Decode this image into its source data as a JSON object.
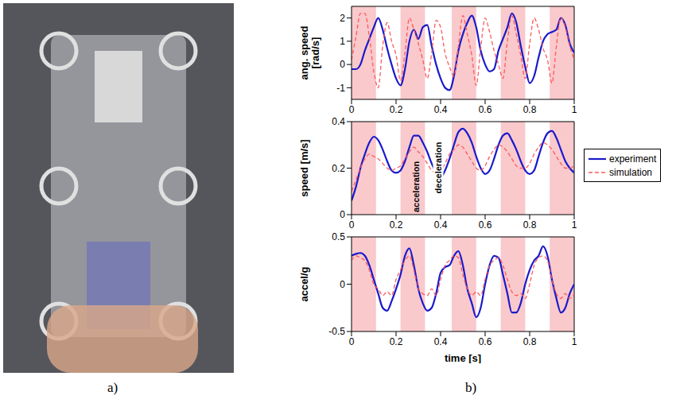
{
  "photo_label": "a)",
  "chart_label": "b)",
  "chart_data": [
    {
      "type": "line",
      "ylabel": "ang. speed [rad/s]",
      "xlim": [
        0,
        1
      ],
      "xticks": [
        0,
        0.2,
        0.4,
        0.6,
        0.8,
        1
      ],
      "ylim": [
        -1.5,
        2.5
      ],
      "yticks": [
        -1,
        0,
        1,
        2
      ],
      "grid": false,
      "spans": [
        [
          0,
          0.11
        ],
        [
          0.22,
          0.33
        ],
        [
          0.45,
          0.56
        ],
        [
          0.67,
          0.78
        ],
        [
          0.89,
          1
        ]
      ],
      "x": [
        0,
        0.02,
        0.04,
        0.06,
        0.08,
        0.1,
        0.12,
        0.14,
        0.16,
        0.18,
        0.2,
        0.22,
        0.24,
        0.26,
        0.28,
        0.3,
        0.32,
        0.34,
        0.36,
        0.38,
        0.4,
        0.42,
        0.44,
        0.46,
        0.48,
        0.5,
        0.52,
        0.54,
        0.56,
        0.58,
        0.6,
        0.62,
        0.64,
        0.66,
        0.68,
        0.7,
        0.72,
        0.74,
        0.76,
        0.78,
        0.8,
        0.82,
        0.84,
        0.86,
        0.88,
        0.9,
        0.92,
        0.94,
        0.96,
        0.98,
        1
      ],
      "series": [
        {
          "name": "experiment",
          "color": "#1a1acc",
          "line_style": "solid",
          "values": [
            -0.2,
            -0.2,
            0.0,
            0.6,
            1.1,
            1.6,
            2.0,
            1.5,
            0.7,
            0.0,
            -0.6,
            -0.9,
            -0.2,
            1.0,
            1.5,
            1.1,
            1.6,
            1.7,
            0.8,
            0.0,
            -0.6,
            -1.0,
            -1.1,
            -0.5,
            0.6,
            1.3,
            1.8,
            2.1,
            1.6,
            0.6,
            0.0,
            -0.3,
            -0.2,
            0.6,
            1.1,
            1.6,
            2.2,
            1.8,
            0.8,
            -0.1,
            -0.8,
            -0.5,
            0.3,
            1.0,
            1.3,
            1.4,
            1.5,
            2.0,
            1.7,
            0.9,
            0.5
          ]
        },
        {
          "name": "simulation",
          "color": "#ff5a5a",
          "line_style": "dashed",
          "values": [
            0.2,
            1.2,
            2.2,
            2.2,
            1.2,
            -0.3,
            -1.0,
            0.8,
            1.8,
            1.0,
            0.4,
            -0.7,
            0.5,
            2.0,
            1.5,
            0.9,
            0.2,
            -0.6,
            0.5,
            1.9,
            1.6,
            0.5,
            -0.1,
            -0.5,
            0.8,
            2.1,
            1.3,
            0.4,
            -0.9,
            0.7,
            2.0,
            1.4,
            0.6,
            0.0,
            -0.6,
            1.0,
            2.1,
            1.3,
            0.4,
            -0.6,
            0.9,
            2.0,
            1.5,
            0.7,
            0.2,
            -0.8,
            0.8,
            2.0,
            1.6,
            0.8,
            0.2
          ]
        }
      ]
    },
    {
      "type": "line",
      "ylabel": "speed [m/s]",
      "xlim": [
        0,
        1
      ],
      "xticks": [
        0,
        0.2,
        0.4,
        0.6,
        0.8,
        1
      ],
      "ylim": [
        0,
        0.4
      ],
      "yticks": [
        0,
        0.2,
        0.4
      ],
      "grid": false,
      "legend": "right",
      "annotations": [
        "acceleration",
        "deceleration"
      ],
      "spans": [
        [
          0,
          0.11
        ],
        [
          0.22,
          0.33
        ],
        [
          0.45,
          0.56
        ],
        [
          0.67,
          0.78
        ],
        [
          0.89,
          1
        ]
      ],
      "x": [
        0,
        0.02,
        0.04,
        0.06,
        0.08,
        0.1,
        0.12,
        0.14,
        0.16,
        0.18,
        0.2,
        0.22,
        0.24,
        0.26,
        0.28,
        0.3,
        0.32,
        0.34,
        0.36,
        0.38,
        0.4,
        0.42,
        0.44,
        0.46,
        0.48,
        0.5,
        0.52,
        0.54,
        0.56,
        0.58,
        0.6,
        0.62,
        0.64,
        0.66,
        0.68,
        0.7,
        0.72,
        0.74,
        0.76,
        0.78,
        0.8,
        0.82,
        0.84,
        0.86,
        0.88,
        0.9,
        0.92,
        0.94,
        0.96,
        0.98,
        1
      ],
      "series": [
        {
          "name": "experiment",
          "color": "#1a1acc",
          "line_style": "solid",
          "values": [
            0.06,
            0.12,
            0.2,
            0.26,
            0.31,
            0.335,
            0.32,
            0.28,
            0.23,
            0.19,
            0.18,
            0.19,
            0.23,
            0.29,
            0.34,
            0.34,
            0.31,
            0.27,
            0.22,
            0.18,
            0.16,
            0.19,
            0.24,
            0.3,
            0.355,
            0.37,
            0.35,
            0.31,
            0.25,
            0.2,
            0.175,
            0.19,
            0.24,
            0.3,
            0.34,
            0.35,
            0.32,
            0.28,
            0.23,
            0.19,
            0.175,
            0.19,
            0.25,
            0.31,
            0.35,
            0.36,
            0.33,
            0.28,
            0.23,
            0.2,
            0.18
          ]
        },
        {
          "name": "simulation",
          "color": "#ff5a5a",
          "line_style": "dashed",
          "values": [
            0.1,
            0.15,
            0.2,
            0.24,
            0.26,
            0.25,
            0.24,
            0.22,
            0.2,
            0.19,
            0.2,
            0.21,
            0.24,
            0.27,
            0.29,
            0.27,
            0.25,
            0.22,
            0.19,
            0.18,
            0.19,
            0.22,
            0.26,
            0.28,
            0.3,
            0.29,
            0.26,
            0.23,
            0.2,
            0.19,
            0.21,
            0.25,
            0.28,
            0.3,
            0.29,
            0.27,
            0.24,
            0.21,
            0.2,
            0.2,
            0.22,
            0.26,
            0.29,
            0.31,
            0.3,
            0.28,
            0.25,
            0.22,
            0.2,
            0.2,
            0.21
          ]
        }
      ]
    },
    {
      "type": "line",
      "ylabel": "accel/g",
      "xlabel": "time [s]",
      "xlim": [
        0,
        1
      ],
      "xticks": [
        0,
        0.2,
        0.4,
        0.6,
        0.8,
        1
      ],
      "ylim": [
        -0.5,
        0.5
      ],
      "yticks": [
        -0.5,
        0,
        0.5
      ],
      "grid": false,
      "spans": [
        [
          0,
          0.11
        ],
        [
          0.22,
          0.33
        ],
        [
          0.45,
          0.56
        ],
        [
          0.67,
          0.78
        ],
        [
          0.89,
          1
        ]
      ],
      "x": [
        0,
        0.02,
        0.04,
        0.06,
        0.08,
        0.1,
        0.12,
        0.14,
        0.16,
        0.18,
        0.2,
        0.22,
        0.24,
        0.26,
        0.28,
        0.3,
        0.32,
        0.34,
        0.36,
        0.38,
        0.4,
        0.42,
        0.44,
        0.46,
        0.48,
        0.5,
        0.52,
        0.54,
        0.56,
        0.58,
        0.6,
        0.62,
        0.64,
        0.66,
        0.68,
        0.7,
        0.72,
        0.74,
        0.76,
        0.78,
        0.8,
        0.82,
        0.84,
        0.86,
        0.88,
        0.9,
        0.92,
        0.94,
        0.96,
        0.98,
        1
      ],
      "series": [
        {
          "name": "experiment",
          "color": "#1a1acc",
          "line_style": "solid",
          "values": [
            0.3,
            0.32,
            0.33,
            0.3,
            0.2,
            0.05,
            -0.1,
            -0.25,
            -0.28,
            -0.18,
            -0.05,
            0.1,
            0.3,
            0.38,
            0.2,
            -0.05,
            -0.2,
            -0.28,
            -0.25,
            -0.1,
            0.12,
            0.18,
            0.2,
            0.3,
            0.35,
            0.2,
            -0.05,
            -0.2,
            -0.35,
            -0.25,
            0.0,
            0.2,
            0.3,
            0.28,
            0.1,
            -0.1,
            -0.3,
            -0.3,
            -0.2,
            0.0,
            0.15,
            0.25,
            0.3,
            0.4,
            0.3,
            0.05,
            -0.15,
            -0.3,
            -0.25,
            -0.1,
            0.0
          ]
        },
        {
          "name": "simulation",
          "color": "#ff5a5a",
          "line_style": "dashed",
          "values": [
            0.25,
            0.3,
            0.28,
            0.25,
            0.15,
            0.0,
            -0.05,
            -0.12,
            -0.08,
            -0.12,
            0.05,
            0.15,
            0.25,
            0.3,
            0.15,
            -0.05,
            -0.1,
            -0.12,
            -0.05,
            -0.12,
            0.05,
            0.2,
            0.25,
            0.3,
            0.28,
            0.1,
            -0.05,
            -0.12,
            -0.08,
            -0.12,
            0.05,
            0.2,
            0.25,
            0.28,
            0.2,
            0.05,
            -0.08,
            -0.12,
            -0.1,
            -0.15,
            0.0,
            0.2,
            0.28,
            0.3,
            0.25,
            0.05,
            -0.1,
            -0.15,
            -0.1,
            -0.15,
            -0.1
          ]
        }
      ]
    }
  ]
}
